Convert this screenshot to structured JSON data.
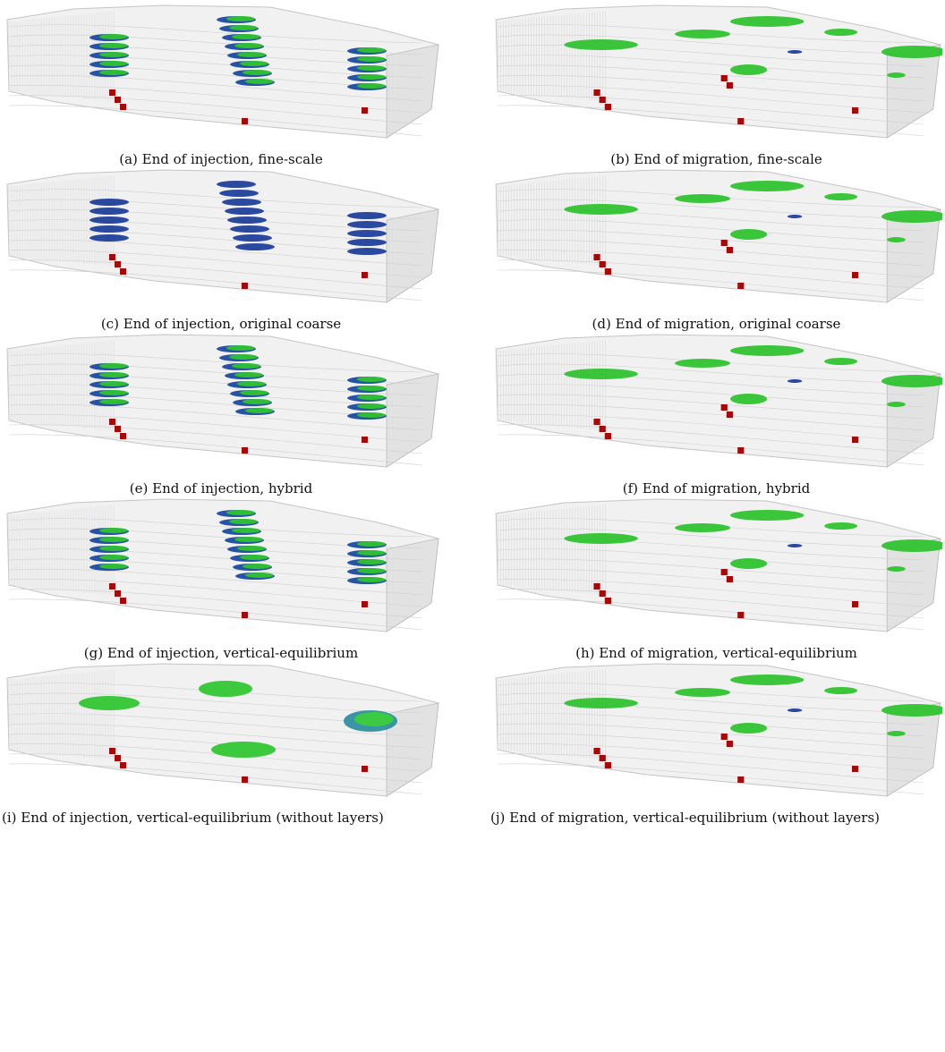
{
  "figure": {
    "subfigures": [
      {
        "caption": "(a) End of injection, fine-scale"
      },
      {
        "caption": "(b) End of migration, fine-scale"
      },
      {
        "caption": "(c) End of injection, original coarse"
      },
      {
        "caption": "(d) End of migration, original coarse"
      },
      {
        "caption": "(e) End of injection, hybrid"
      },
      {
        "caption": "(f) End of migration, hybrid"
      },
      {
        "caption": "(g) End of injection, vertical-equilibrium"
      },
      {
        "caption": "(h) End of migration, vertical-equilibrium"
      },
      {
        "caption": "(i) End of injection, vertical-equilibrium (without layers)"
      },
      {
        "caption": "(j) End of migration, vertical-equilibrium (without layers)"
      }
    ]
  }
}
